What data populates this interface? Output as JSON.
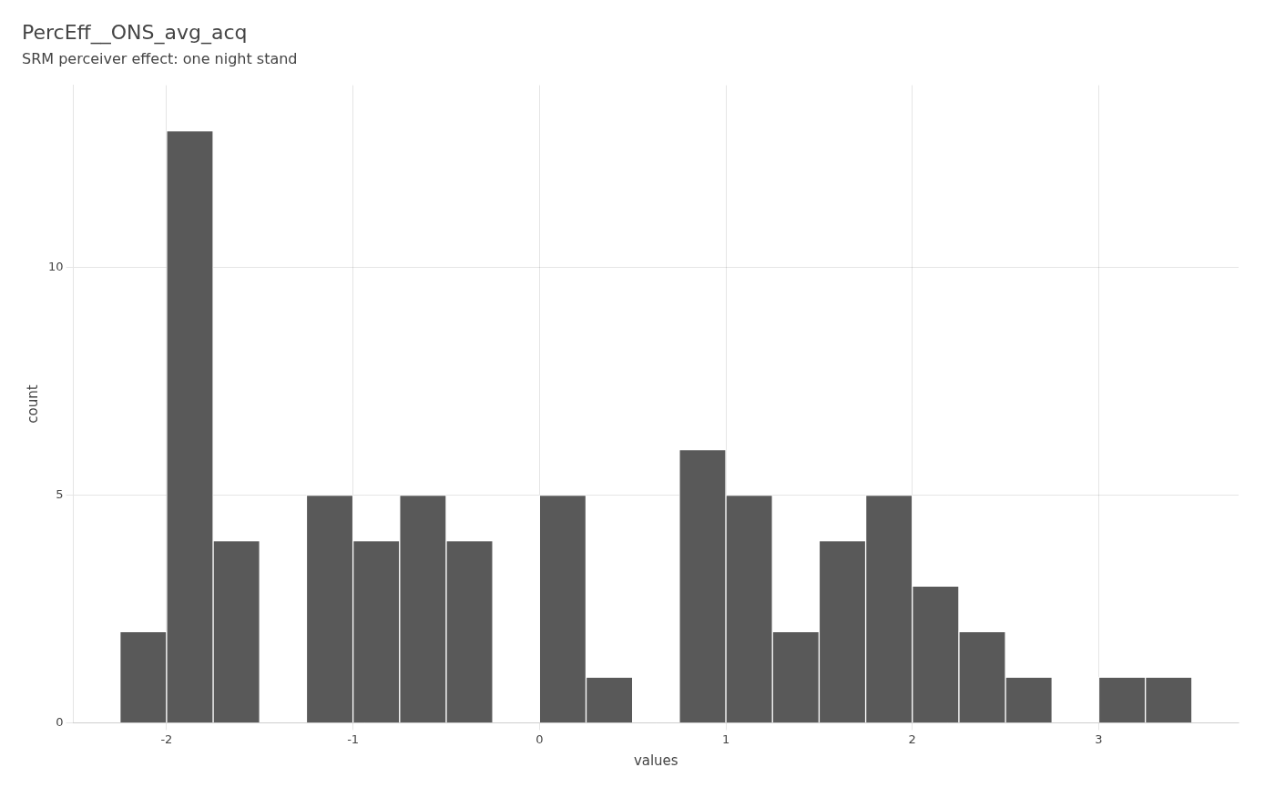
{
  "chart_data": {
    "type": "histogram",
    "title": "PercEff__ONS_avg_acq",
    "subtitle": "SRM perceiver effect: one night stand",
    "xlabel": "values",
    "ylabel": "count",
    "bins": [
      -2.25,
      -2.0,
      -1.75,
      -1.5,
      -1.25,
      -1.0,
      -0.75,
      -0.5,
      -0.25,
      0.0,
      0.25,
      0.5,
      0.75,
      1.0,
      1.25,
      1.5,
      1.75,
      2.0,
      2.25,
      2.5,
      2.75,
      3.0,
      3.25,
      3.5,
      3.75
    ],
    "counts": [
      2,
      13,
      4,
      0,
      5,
      4,
      5,
      4,
      0,
      5,
      1,
      0,
      6,
      5,
      2,
      4,
      5,
      3,
      2,
      1,
      0,
      1,
      1,
      0
    ],
    "color": "#595959",
    "xlim": [
      -2.5,
      3.75
    ],
    "xticks": [
      -2,
      -1,
      0,
      1,
      2,
      3
    ],
    "ylim": [
      0,
      14
    ],
    "yticks": [
      0,
      5,
      10
    ],
    "grid": true
  }
}
